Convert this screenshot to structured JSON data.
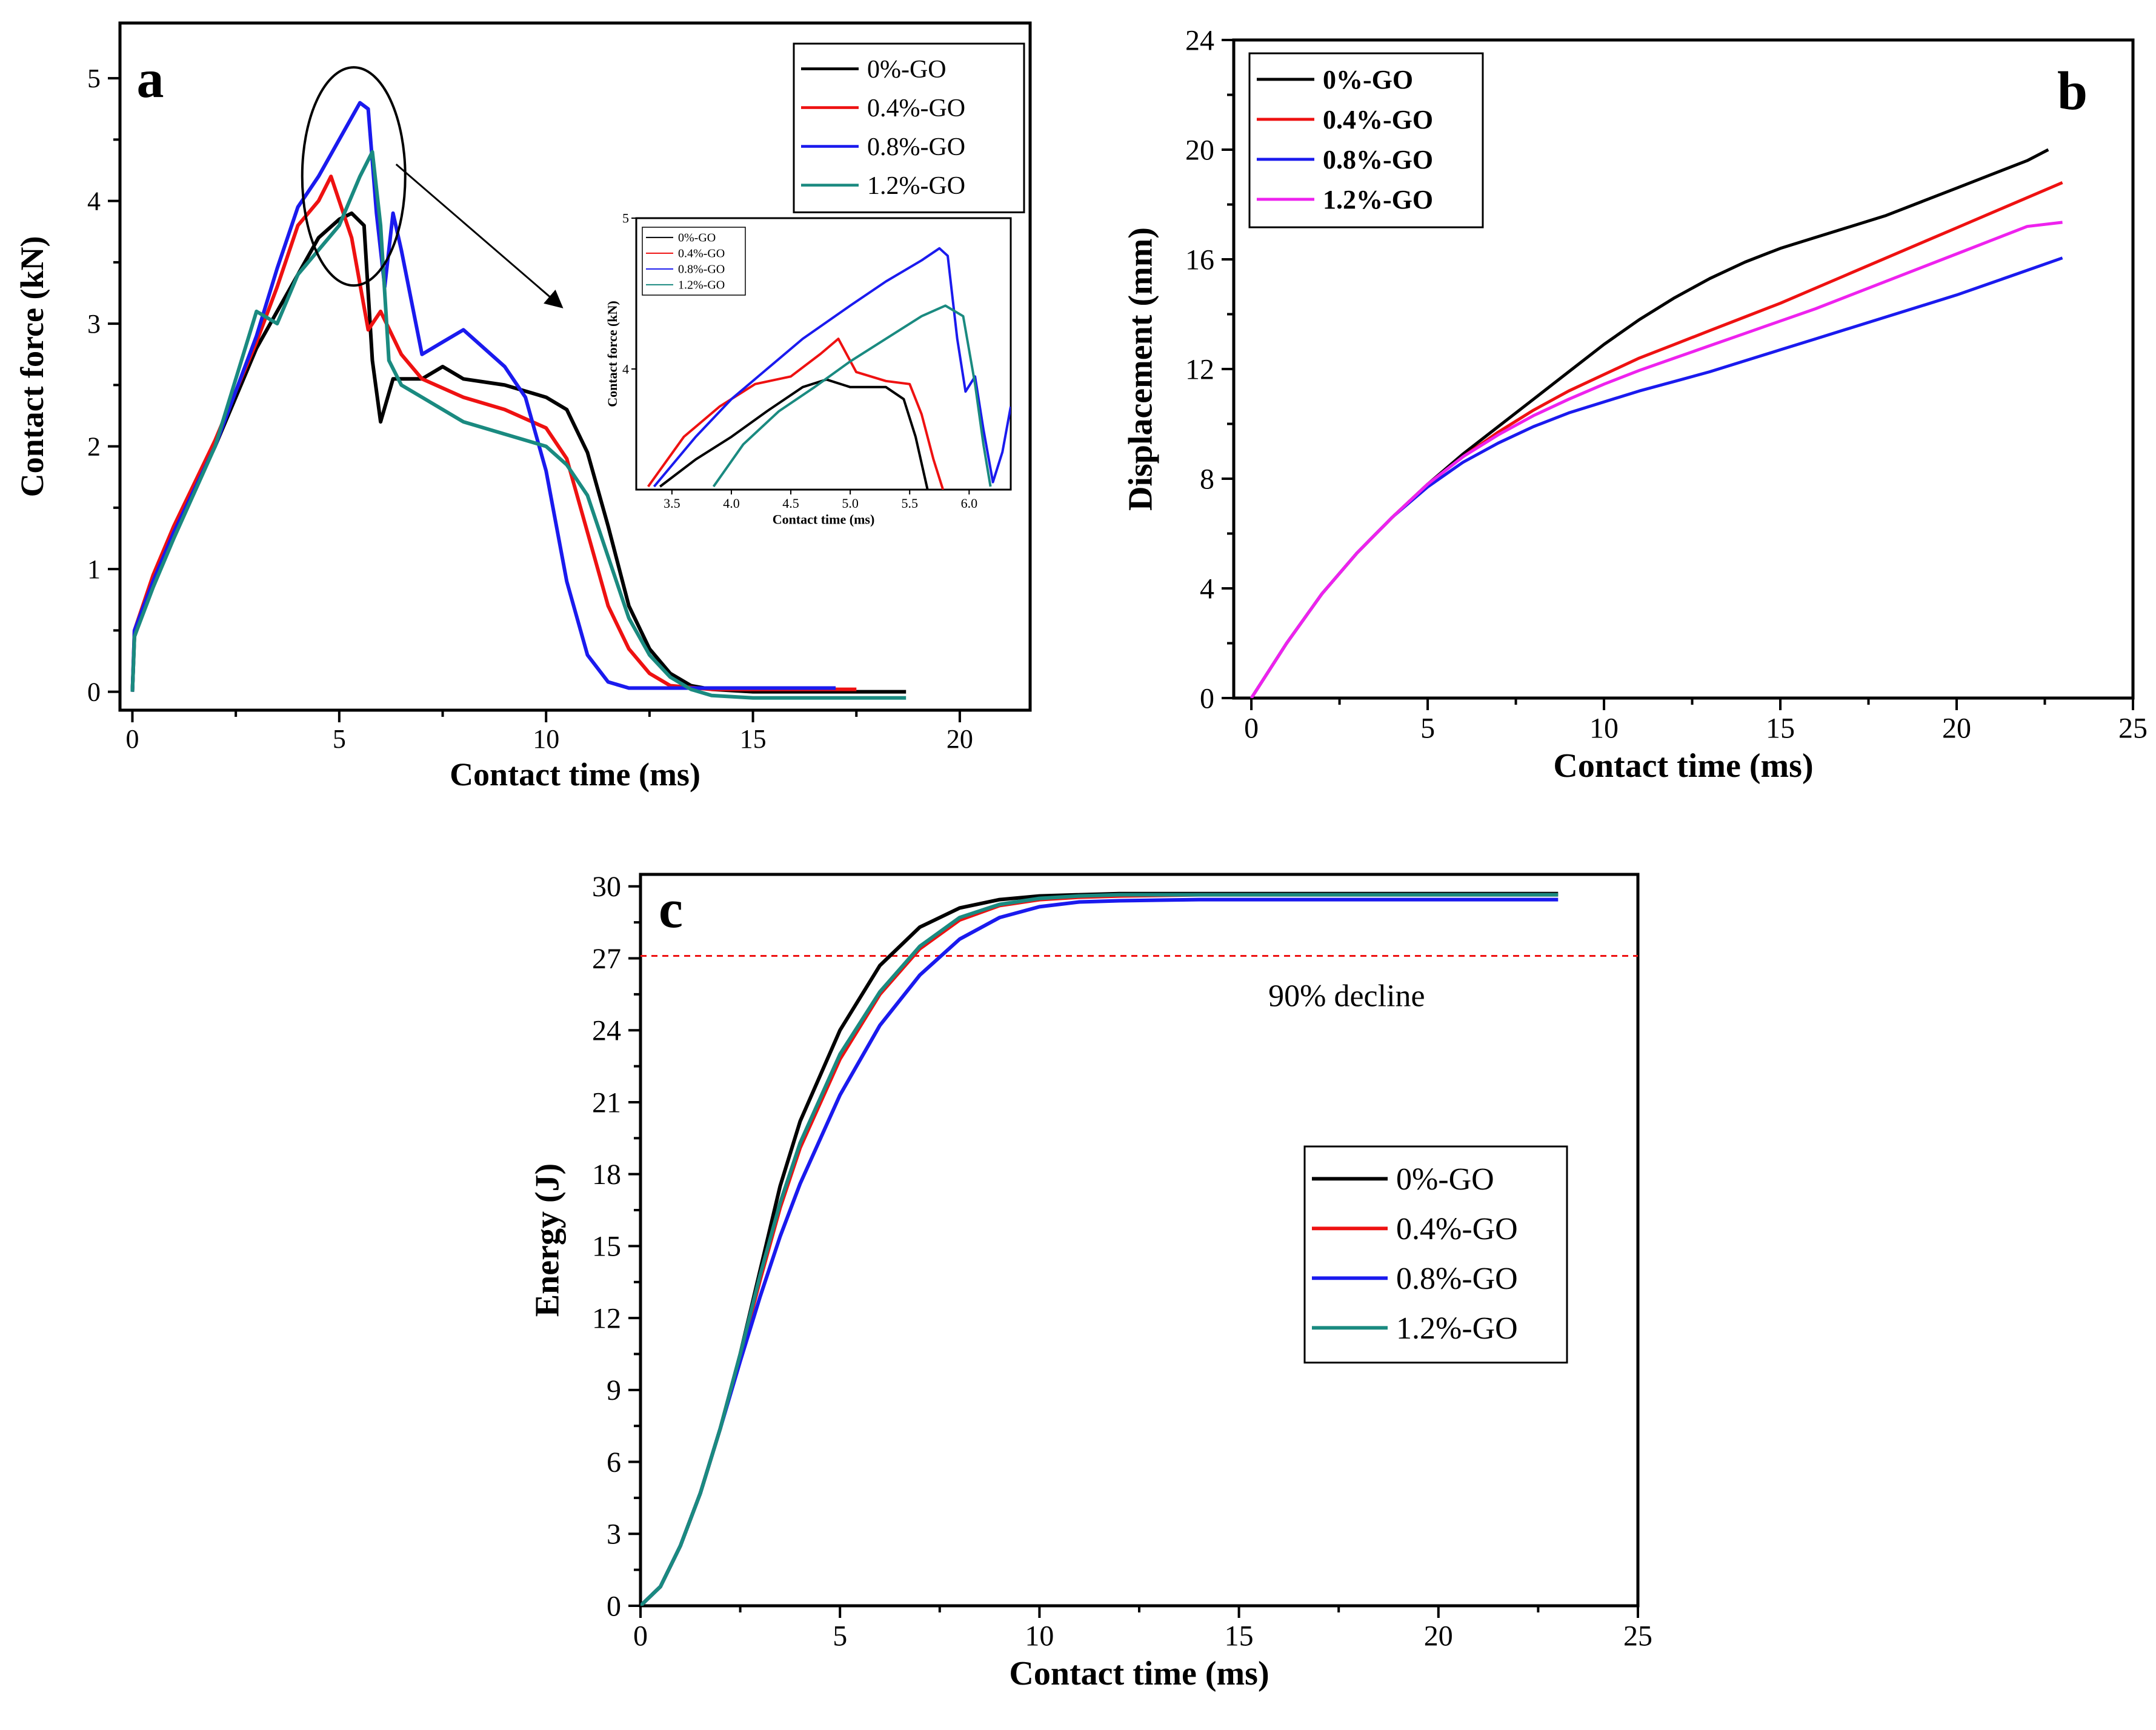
{
  "figure": {
    "panels": [
      "a",
      "b",
      "c"
    ]
  },
  "chart_data": [
    {
      "id": "a",
      "type": "line",
      "panel_label": "a",
      "xlabel": "Contact time (ms)",
      "ylabel": "Contact force (kN)",
      "xlim": [
        -0.3,
        21.7
      ],
      "ylim": [
        -0.15,
        5.45
      ],
      "xticks": [
        0,
        5,
        10,
        15,
        20
      ],
      "yticks": [
        0,
        1,
        2,
        3,
        4,
        5
      ],
      "legend_position": "top-right",
      "series": [
        {
          "name": "0%-GO",
          "color": "#000000",
          "x": [
            0,
            0.05,
            0.5,
            1,
            2,
            3,
            3.5,
            4,
            4.5,
            5,
            5.3,
            5.6,
            5.8,
            6.0,
            6.3,
            7,
            7.5,
            8,
            9,
            10,
            10.5,
            11,
            11.5,
            12,
            12.5,
            13,
            13.5,
            14,
            15,
            16,
            17,
            18,
            18.7
          ],
          "y": [
            0,
            0.45,
            0.9,
            1.3,
            2.0,
            2.8,
            3.1,
            3.4,
            3.7,
            3.85,
            3.9,
            3.8,
            2.7,
            2.2,
            2.55,
            2.55,
            2.65,
            2.55,
            2.5,
            2.4,
            2.3,
            1.95,
            1.35,
            0.7,
            0.35,
            0.15,
            0.05,
            0.02,
            0.0,
            0.0,
            0.0,
            0.0,
            0.0
          ]
        },
        {
          "name": "0.4%-GO",
          "color": "#ee1111",
          "x": [
            0,
            0.05,
            0.5,
            1,
            2,
            3,
            3.5,
            4,
            4.5,
            4.8,
            5.0,
            5.3,
            5.7,
            6.0,
            6.5,
            7,
            8,
            9,
            10,
            10.5,
            11,
            11.5,
            12,
            12.5,
            13,
            14,
            15,
            16,
            17,
            17.5
          ],
          "y": [
            0,
            0.5,
            0.95,
            1.35,
            2.05,
            2.85,
            3.3,
            3.8,
            4.0,
            4.2,
            4.0,
            3.7,
            2.95,
            3.1,
            2.75,
            2.55,
            2.4,
            2.3,
            2.15,
            1.9,
            1.3,
            0.7,
            0.35,
            0.15,
            0.05,
            0.02,
            0.02,
            0.02,
            0.02,
            0.02
          ]
        },
        {
          "name": "0.8%-GO",
          "color": "#1a1aee",
          "x": [
            0,
            0.05,
            0.5,
            1,
            2,
            3,
            3.5,
            4,
            4.5,
            5,
            5.5,
            5.7,
            5.9,
            6.1,
            6.3,
            6.5,
            7,
            7.5,
            8,
            9,
            9.5,
            10,
            10.5,
            11,
            11.5,
            12,
            13,
            14,
            15,
            16,
            17
          ],
          "y": [
            0,
            0.5,
            0.9,
            1.3,
            2.0,
            2.9,
            3.45,
            3.95,
            4.2,
            4.5,
            4.8,
            4.75,
            3.9,
            3.3,
            3.9,
            3.6,
            2.75,
            2.85,
            2.95,
            2.65,
            2.4,
            1.8,
            0.9,
            0.3,
            0.08,
            0.03,
            0.03,
            0.03,
            0.03,
            0.03,
            0.03
          ]
        },
        {
          "name": "1.2%-GO",
          "color": "#1a8a80",
          "x": [
            0,
            0.05,
            0.5,
            1,
            2,
            3,
            3.5,
            4,
            4.5,
            5,
            5.5,
            5.8,
            6.0,
            6.2,
            6.5,
            7,
            8,
            9,
            10,
            10.5,
            11,
            11.5,
            12,
            12.5,
            13,
            13.5,
            14,
            15,
            16,
            17,
            18,
            18.7
          ],
          "y": [
            0,
            0.45,
            0.85,
            1.25,
            2.0,
            3.1,
            3.0,
            3.4,
            3.6,
            3.8,
            4.2,
            4.4,
            3.8,
            2.7,
            2.5,
            2.4,
            2.2,
            2.1,
            2.0,
            1.85,
            1.6,
            1.1,
            0.6,
            0.3,
            0.12,
            0.02,
            -0.03,
            -0.05,
            -0.05,
            -0.05,
            -0.05,
            -0.05
          ]
        }
      ],
      "annotation": {
        "type": "ellipse-with-arrow",
        "center": [
          5.35,
          4.2
        ]
      },
      "inset": {
        "xlabel": "Contact time (ms)",
        "ylabel": "Contact force (kN)",
        "xlim": [
          3.2,
          6.35
        ],
        "ylim": [
          3.2,
          5.0
        ],
        "xticks": [
          3.5,
          4.0,
          4.5,
          5.0,
          5.5,
          6.0
        ],
        "xtick_labels": [
          "3.5",
          "4.0",
          "4.5",
          "5.0",
          "5.5",
          "6.0"
        ],
        "yticks": [
          4,
          5
        ],
        "legend_position": "top-left",
        "series": [
          {
            "name": "0%-GO",
            "color": "#000000",
            "x": [
              3.4,
              3.7,
              4.0,
              4.3,
              4.6,
              4.8,
              5.0,
              5.3,
              5.45,
              5.55,
              5.65
            ],
            "y": [
              3.22,
              3.4,
              3.55,
              3.72,
              3.88,
              3.93,
              3.88,
              3.88,
              3.8,
              3.55,
              3.2
            ]
          },
          {
            "name": "0.4%-GO",
            "color": "#ee1111",
            "x": [
              3.3,
              3.6,
              3.9,
              4.2,
              4.5,
              4.75,
              4.9,
              5.05,
              5.3,
              5.5,
              5.6,
              5.7,
              5.78
            ],
            "y": [
              3.22,
              3.55,
              3.75,
              3.9,
              3.95,
              4.1,
              4.2,
              3.98,
              3.92,
              3.9,
              3.7,
              3.4,
              3.2
            ]
          },
          {
            "name": "0.8%-GO",
            "color": "#1a1aee",
            "x": [
              3.35,
              3.7,
              4.0,
              4.3,
              4.6,
              5.0,
              5.3,
              5.6,
              5.75,
              5.82,
              5.9,
              5.97,
              6.05,
              6.12,
              6.2,
              6.28,
              6.35
            ],
            "y": [
              3.22,
              3.55,
              3.8,
              4.0,
              4.2,
              4.42,
              4.58,
              4.72,
              4.8,
              4.75,
              4.2,
              3.85,
              3.95,
              3.6,
              3.25,
              3.45,
              3.75
            ]
          },
          {
            "name": "1.2%-GO",
            "color": "#1a8a80",
            "x": [
              3.85,
              4.1,
              4.4,
              4.7,
              5.0,
              5.3,
              5.6,
              5.8,
              5.95,
              6.05,
              6.12,
              6.18
            ],
            "y": [
              3.22,
              3.5,
              3.72,
              3.88,
              4.05,
              4.2,
              4.35,
              4.42,
              4.35,
              3.9,
              3.5,
              3.22
            ]
          }
        ]
      }
    },
    {
      "id": "b",
      "type": "line",
      "panel_label": "b",
      "xlabel": "Contact time (ms)",
      "ylabel": "Displacement (mm)",
      "xlim": [
        -0.5,
        25
      ],
      "ylim": [
        0,
        24
      ],
      "xticks": [
        0,
        5,
        10,
        15,
        20,
        25
      ],
      "yticks": [
        0,
        4,
        8,
        12,
        16,
        20,
        24
      ],
      "legend_position": "top-left",
      "series": [
        {
          "name": "0%-GO",
          "color": "#000000",
          "x": [
            0,
            1,
            2,
            3,
            4,
            5,
            6,
            7,
            8,
            9,
            10,
            11,
            12,
            13,
            14,
            15,
            16,
            17,
            18,
            19,
            20,
            21,
            22,
            22.6
          ],
          "y": [
            0,
            2.0,
            3.8,
            5.3,
            6.6,
            7.8,
            8.9,
            9.9,
            10.9,
            11.9,
            12.9,
            13.8,
            14.6,
            15.3,
            15.9,
            16.4,
            16.8,
            17.2,
            17.6,
            18.1,
            18.6,
            19.1,
            19.6,
            20.0
          ]
        },
        {
          "name": "0.4%-GO",
          "color": "#ee1111",
          "x": [
            0,
            1,
            2,
            3,
            4,
            5,
            6,
            7,
            8,
            9,
            10,
            11,
            12,
            13,
            14,
            15,
            16,
            17,
            18,
            19,
            20,
            21,
            22,
            23
          ],
          "y": [
            0,
            2.0,
            3.8,
            5.3,
            6.6,
            7.8,
            8.8,
            9.7,
            10.5,
            11.2,
            11.8,
            12.4,
            12.9,
            13.4,
            13.9,
            14.4,
            14.95,
            15.5,
            16.05,
            16.6,
            17.15,
            17.7,
            18.25,
            18.8
          ]
        },
        {
          "name": "0.8%-GO",
          "color": "#1a1aee",
          "x": [
            0,
            1,
            2,
            3,
            4,
            5,
            6,
            7,
            8,
            9,
            10,
            11,
            12,
            13,
            14,
            15,
            16,
            17,
            18,
            19,
            20,
            21,
            22,
            23
          ],
          "y": [
            0,
            2.0,
            3.8,
            5.3,
            6.6,
            7.7,
            8.6,
            9.3,
            9.9,
            10.4,
            10.8,
            11.2,
            11.55,
            11.9,
            12.3,
            12.7,
            13.1,
            13.5,
            13.9,
            14.3,
            14.7,
            15.15,
            15.6,
            16.05
          ]
        },
        {
          "name": "1.2%-GO",
          "color": "#ee22ee",
          "x": [
            0,
            1,
            2,
            3,
            4,
            5,
            6,
            7,
            8,
            9,
            10,
            11,
            12,
            13,
            14,
            15,
            16,
            17,
            18,
            19,
            20,
            21,
            22,
            23
          ],
          "y": [
            0,
            2.0,
            3.8,
            5.3,
            6.6,
            7.8,
            8.8,
            9.6,
            10.3,
            10.9,
            11.45,
            11.95,
            12.4,
            12.85,
            13.3,
            13.75,
            14.2,
            14.7,
            15.2,
            15.7,
            16.2,
            16.7,
            17.2,
            17.35
          ]
        }
      ]
    },
    {
      "id": "c",
      "type": "line",
      "panel_label": "c",
      "xlabel": "Contact time (ms)",
      "ylabel": "Energy (J)",
      "xlim": [
        0,
        25
      ],
      "ylim": [
        0,
        30.5
      ],
      "xticks": [
        0,
        5,
        10,
        15,
        20,
        25
      ],
      "yticks": [
        0,
        3,
        6,
        9,
        12,
        15,
        18,
        21,
        24,
        27,
        30
      ],
      "legend_position": "center-right",
      "reference_line": {
        "y": 27.1,
        "color": "#ee1111",
        "style": "dashed"
      },
      "annotation_text": "90% decline",
      "series": [
        {
          "name": "0%-GO",
          "color": "#000000",
          "x": [
            0,
            0.5,
            1,
            1.5,
            2,
            2.5,
            3,
            3.5,
            4,
            5,
            6,
            7,
            8,
            9,
            10,
            11,
            12,
            14,
            16,
            18,
            20,
            23
          ],
          "y": [
            0,
            0.8,
            2.5,
            4.7,
            7.4,
            10.5,
            14.0,
            17.5,
            20.2,
            24.0,
            26.7,
            28.3,
            29.1,
            29.45,
            29.6,
            29.65,
            29.7,
            29.7,
            29.7,
            29.7,
            29.7,
            29.7
          ]
        },
        {
          "name": "0.4%-GO",
          "color": "#ee1111",
          "x": [
            0,
            0.5,
            1,
            1.5,
            2,
            2.5,
            3,
            3.5,
            4,
            5,
            6,
            7,
            8,
            9,
            10,
            11,
            12,
            14,
            16,
            18,
            20,
            23
          ],
          "y": [
            0,
            0.8,
            2.5,
            4.7,
            7.4,
            10.4,
            13.6,
            16.6,
            19.1,
            22.8,
            25.5,
            27.4,
            28.6,
            29.2,
            29.45,
            29.55,
            29.6,
            29.65,
            29.65,
            29.65,
            29.65,
            29.65
          ]
        },
        {
          "name": "0.8%-GO",
          "color": "#1a1aee",
          "x": [
            0,
            0.5,
            1,
            1.5,
            2,
            2.5,
            3,
            3.5,
            4,
            5,
            6,
            7,
            8,
            9,
            10,
            11,
            12,
            14,
            16,
            18,
            20,
            23
          ],
          "y": [
            0,
            0.8,
            2.5,
            4.7,
            7.4,
            10.2,
            12.9,
            15.4,
            17.6,
            21.3,
            24.2,
            26.3,
            27.8,
            28.7,
            29.15,
            29.35,
            29.4,
            29.45,
            29.45,
            29.45,
            29.45,
            29.45
          ]
        },
        {
          "name": "1.2%-GO",
          "color": "#1a8a80",
          "x": [
            0,
            0.5,
            1,
            1.5,
            2,
            2.5,
            3,
            3.5,
            4,
            5,
            6,
            7,
            8,
            9,
            10,
            11,
            12,
            14,
            16,
            18,
            20,
            23
          ],
          "y": [
            0,
            0.8,
            2.5,
            4.7,
            7.4,
            10.5,
            13.8,
            16.8,
            19.3,
            23.0,
            25.6,
            27.5,
            28.7,
            29.25,
            29.5,
            29.6,
            29.65,
            29.65,
            29.65,
            29.65,
            29.65,
            29.65
          ]
        }
      ]
    }
  ]
}
